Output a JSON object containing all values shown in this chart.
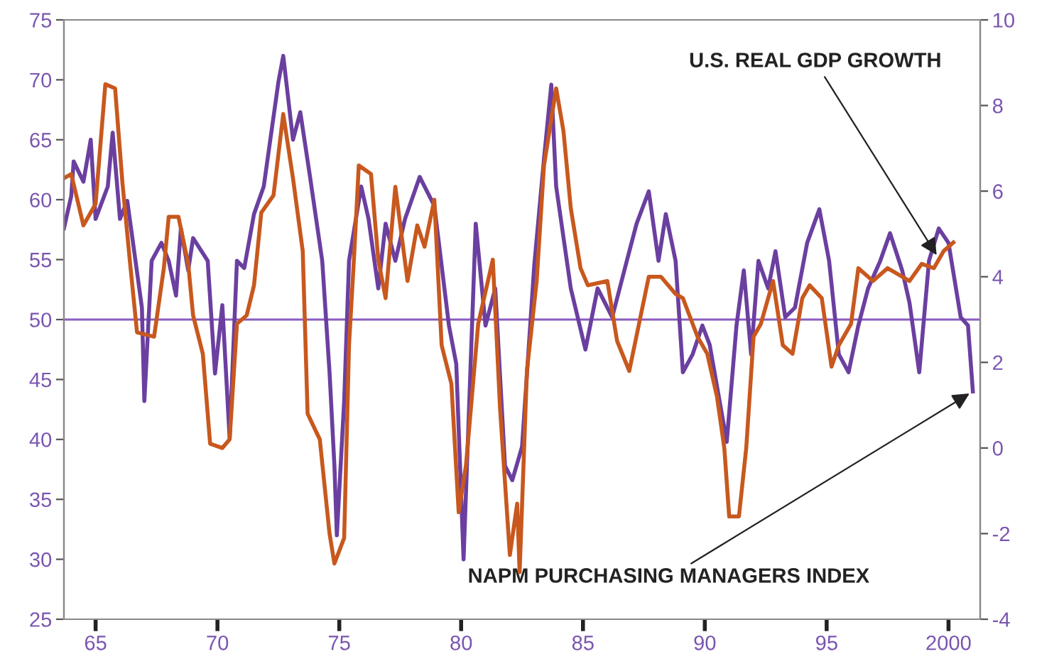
{
  "chart_data": {
    "type": "line",
    "xlim": [
      1963.7,
      2001.3
    ],
    "xticks": [
      {
        "value": 1965,
        "label": "65"
      },
      {
        "value": 1970,
        "label": "70"
      },
      {
        "value": 1975,
        "label": "75"
      },
      {
        "value": 1980,
        "label": "80"
      },
      {
        "value": 1985,
        "label": "85"
      },
      {
        "value": 1990,
        "label": "90"
      },
      {
        "value": 1995,
        "label": "95"
      },
      {
        "value": 2000,
        "label": "2000"
      }
    ],
    "ylim": [
      25,
      75
    ],
    "yticks": [
      25,
      30,
      35,
      40,
      45,
      50,
      55,
      60,
      65,
      70,
      75
    ],
    "y2lim": [
      -4,
      10
    ],
    "y2ticks": [
      -4,
      -2,
      0,
      2,
      4,
      6,
      8,
      10
    ],
    "grid": false,
    "legend": false,
    "ref_lines": [
      {
        "axis": "y",
        "value": 50,
        "color": "#8a5cc0"
      }
    ],
    "annotations": [
      {
        "text": "U.S. REAL GDP GROWTH",
        "x": 1999.6,
        "y": 55.1
      },
      {
        "text": "NAPM PURCHASING MANAGERS INDEX",
        "x": 2001.0,
        "y": 44.0
      }
    ],
    "series": [
      {
        "color": "#6b3fa0",
        "x": [
          1963.7,
          1964.0,
          1964.1,
          1964.5,
          1964.8,
          1965.0,
          1965.5,
          1965.7,
          1966.0,
          1966.3,
          1966.9,
          1967.0,
          1967.3,
          1967.7,
          1968.0,
          1968.3,
          1968.5,
          1968.8,
          1969.0,
          1969.6,
          1969.9,
          1970.2,
          1970.5,
          1970.8,
          1971.1,
          1971.5,
          1971.9,
          1972.5,
          1972.7,
          1973.1,
          1973.4,
          1973.8,
          1974.3,
          1974.6,
          1974.8,
          1974.9,
          1975.2,
          1975.4,
          1975.9,
          1976.2,
          1976.6,
          1976.9,
          1977.3,
          1977.7,
          1978.3,
          1978.9,
          1979.5,
          1979.8,
          1980.1,
          1980.6,
          1981.0,
          1981.4,
          1981.8,
          1982.1,
          1982.5,
          1983.0,
          1983.4,
          1983.7,
          1983.9,
          1984.5,
          1985.1,
          1985.6,
          1986.2,
          1986.8,
          1987.2,
          1987.7,
          1988.1,
          1988.4,
          1988.8,
          1989.1,
          1989.5,
          1989.9,
          1990.2,
          1990.9,
          1991.3,
          1991.6,
          1991.9,
          1992.2,
          1992.6,
          1992.9,
          1993.3,
          1993.7,
          1994.2,
          1994.7,
          1995.1,
          1995.5,
          1995.9,
          1996.3,
          1996.7,
          1997.2,
          1997.6,
          1998.1,
          1998.4,
          1998.8,
          1999.2,
          1999.6,
          2000.0,
          2000.5,
          2000.8,
          2001.0
        ],
        "values": [
          57.6,
          60.3,
          63.2,
          61.5,
          65.0,
          58.4,
          61.1,
          65.6,
          58.4,
          59.9,
          51.0,
          43.2,
          54.9,
          56.4,
          54.9,
          52.0,
          57.6,
          54.1,
          56.8,
          54.9,
          45.5,
          51.2,
          40.1,
          54.9,
          54.3,
          58.8,
          61.1,
          69.8,
          72.0,
          65.0,
          67.3,
          61.9,
          54.9,
          45.6,
          37.8,
          32.0,
          43.2,
          54.9,
          61.1,
          58.4,
          52.6,
          58.0,
          54.9,
          58.4,
          61.9,
          59.5,
          49.5,
          46.3,
          30.0,
          58.0,
          49.5,
          52.6,
          37.8,
          36.6,
          39.4,
          54.5,
          63.4,
          69.6,
          61.1,
          52.6,
          47.5,
          52.6,
          50.2,
          54.9,
          58.0,
          60.7,
          54.9,
          58.8,
          54.9,
          45.6,
          47.1,
          49.5,
          47.9,
          39.8,
          49.5,
          54.1,
          47.1,
          54.9,
          52.6,
          55.7,
          50.2,
          51.0,
          56.4,
          59.2,
          54.9,
          47.1,
          45.6,
          49.5,
          52.6,
          54.9,
          57.2,
          54.1,
          51.4,
          45.6,
          54.9,
          57.6,
          56.4,
          50.2,
          49.5,
          44.0
        ]
      },
      {
        "color": "#c8581e",
        "axis": "y2",
        "x": [
          1963.7,
          1964.0,
          1964.5,
          1965.0,
          1965.4,
          1965.8,
          1966.1,
          1966.4,
          1966.7,
          1967.4,
          1967.8,
          1968.0,
          1968.4,
          1968.8,
          1969.0,
          1969.4,
          1969.7,
          1970.2,
          1970.5,
          1970.8,
          1971.2,
          1971.5,
          1971.8,
          1972.3,
          1972.7,
          1973.1,
          1973.5,
          1973.7,
          1974.2,
          1974.6,
          1974.8,
          1975.2,
          1975.4,
          1975.6,
          1975.8,
          1976.3,
          1976.6,
          1976.9,
          1977.3,
          1977.8,
          1978.2,
          1978.5,
          1978.9,
          1979.2,
          1979.6,
          1979.9,
          1980.2,
          1980.7,
          1981.3,
          1981.6,
          1982.0,
          1982.3,
          1982.4,
          1982.7,
          1983.1,
          1983.4,
          1983.9,
          1984.2,
          1984.5,
          1984.9,
          1985.2,
          1986.0,
          1986.4,
          1986.9,
          1987.3,
          1987.7,
          1988.2,
          1988.8,
          1989.1,
          1989.7,
          1990.1,
          1990.5,
          1990.8,
          1991.0,
          1991.4,
          1991.7,
          1992.0,
          1992.3,
          1992.8,
          1993.2,
          1993.6,
          1994.0,
          1994.3,
          1994.8,
          1995.2,
          1995.5,
          1996.0,
          1996.3,
          1996.9,
          1997.5,
          1998.1,
          1998.4,
          1998.9,
          1999.4,
          1999.8,
          2000.2
        ],
        "values": [
          6.3,
          6.4,
          5.2,
          5.7,
          8.5,
          8.4,
          6.2,
          4.4,
          2.7,
          2.6,
          4.2,
          5.4,
          5.4,
          4.3,
          3.1,
          2.2,
          0.1,
          0.0,
          0.2,
          2.9,
          3.1,
          3.8,
          5.5,
          5.9,
          7.8,
          6.3,
          4.6,
          0.8,
          0.2,
          -2.0,
          -2.7,
          -2.1,
          2.4,
          4.4,
          6.6,
          6.4,
          4.4,
          3.5,
          6.1,
          3.9,
          5.2,
          4.7,
          5.8,
          2.4,
          1.5,
          -1.5,
          -0.4,
          2.9,
          4.4,
          0.9,
          -2.5,
          -1.3,
          -2.9,
          1.8,
          3.9,
          6.6,
          8.4,
          7.4,
          5.6,
          4.2,
          3.8,
          3.9,
          2.5,
          1.8,
          2.9,
          4.0,
          4.0,
          3.6,
          3.5,
          2.6,
          2.2,
          1.2,
          0.0,
          -1.6,
          -1.6,
          0.0,
          2.6,
          2.9,
          3.9,
          2.4,
          2.2,
          3.5,
          3.8,
          3.5,
          1.9,
          2.4,
          2.9,
          4.2,
          3.9,
          4.2,
          4.0,
          3.9,
          4.3,
          4.2,
          4.6,
          4.8
        ]
      }
    ]
  }
}
